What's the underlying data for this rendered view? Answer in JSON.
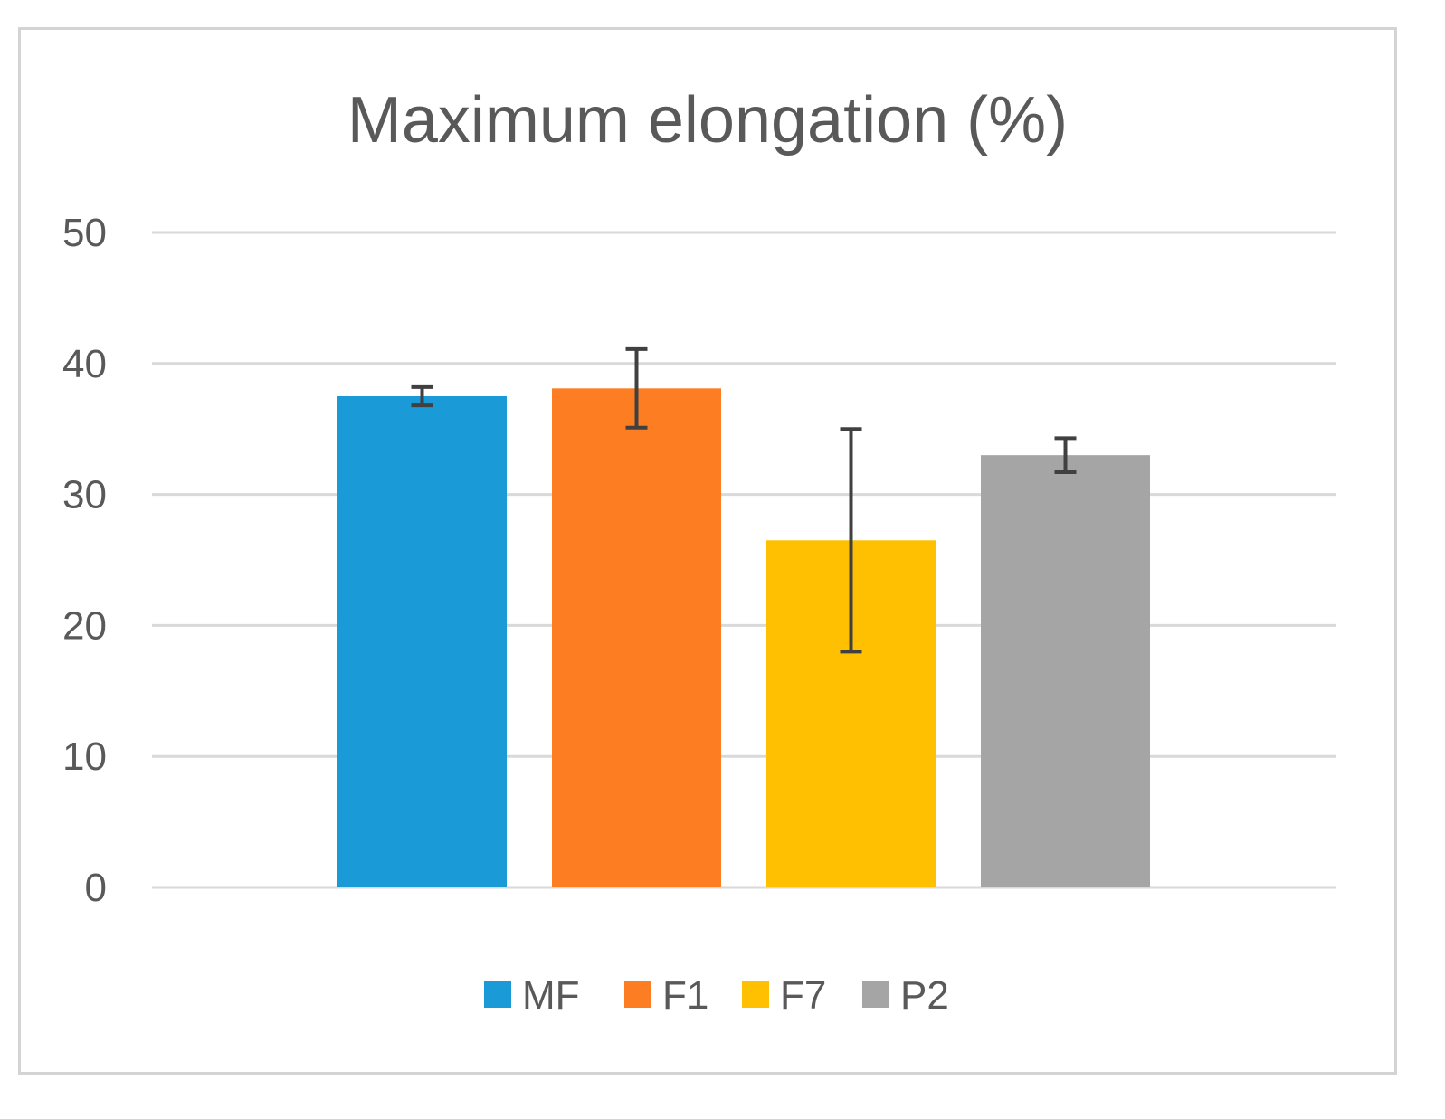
{
  "chart_data": {
    "type": "bar",
    "title": "Maximum elongation (%)",
    "xlabel": "",
    "ylabel": "",
    "ylim": [
      0,
      50
    ],
    "yticks": [
      "0",
      "10",
      "20",
      "30",
      "40",
      "50"
    ],
    "grid": true,
    "legend_position": "bottom",
    "series": [
      {
        "name": "MF",
        "value": 37.5,
        "error": 0.7,
        "color": "#1a9ad6"
      },
      {
        "name": "F1",
        "value": 38.1,
        "error": 3.0,
        "color": "#fd7e22"
      },
      {
        "name": "F7",
        "value": 26.5,
        "error": 8.5,
        "color": "#fec000"
      },
      {
        "name": "P2",
        "value": 33.0,
        "error": 1.3,
        "color": "#a5a5a5"
      }
    ]
  }
}
